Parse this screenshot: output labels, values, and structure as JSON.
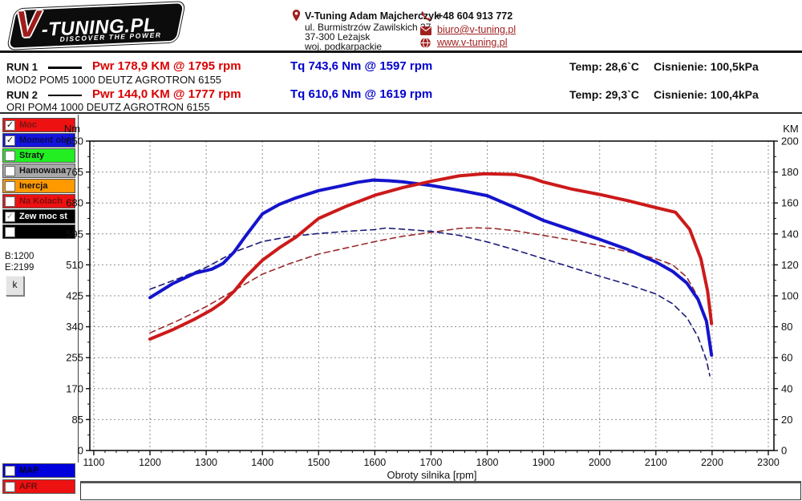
{
  "header": {
    "logo": {
      "brand_v": "V",
      "brand_rest": "-TUNING.PL",
      "tagline": "DISCOVER THE POWER"
    },
    "contact": {
      "name": "V-Tuning Adam Majcherczyk",
      "address_line1": "ul. Burmistrzów Zawilskich 37",
      "address_line2": "37-300 Leżajsk",
      "address_line3": "woj. podkarpackie",
      "phone": "+48 604 913 772",
      "email": "biuro@v-tuning.pl",
      "website": "www.v-tuning.pl",
      "icons": [
        "location-pin-icon",
        "phone-icon",
        "email-icon",
        "globe-icon"
      ],
      "icon_color": "#a02020"
    }
  },
  "runs": [
    {
      "label": "RUN 1",
      "power": "Pwr  178,9 KM @ 1795 rpm",
      "torque": "Tq 743,6 Nm @ 1597 rpm",
      "temp": "Temp: 28,6`C",
      "pressure": "Cisnienie: 100,5kPa",
      "model": "MOD2 POM5 1000 DEUTZ AGROTRON 6155"
    },
    {
      "label": "RUN 2",
      "power": "Pwr  144,0 KM @ 1777 rpm",
      "torque": "Tq 610,6 Nm @ 1619 rpm",
      "temp": "Temp: 29,3`C",
      "pressure": "Cisnienie: 100,4kPa",
      "model": "ORI POM4 1000 DEUTZ AGROTRON 6155"
    }
  ],
  "sidebar": {
    "channels": [
      {
        "label": "Moc",
        "bg": "#ee1111",
        "text_color": "#7a1515",
        "check": "✓",
        "check_color": "#111111"
      },
      {
        "label": "Moment obr",
        "bg": "#1414dd",
        "text_color": "#0a0a50",
        "check": "✓",
        "check_color": "#111111"
      },
      {
        "label": "Straty",
        "bg": "#22ee22",
        "text_color": "#111111",
        "check": "",
        "check_color": "#111111"
      },
      {
        "label": "Hamowana",
        "bg": "#a8a8a8",
        "text_color": "#111111",
        "check": "",
        "check_color": "#111111"
      },
      {
        "label": "Inercja",
        "bg": "#ff9900",
        "text_color": "#111111",
        "check": "",
        "check_color": "#111111"
      },
      {
        "label": "Na Kolach",
        "bg": "#ee1111",
        "text_color": "#7a1010",
        "check": "",
        "check_color": "#111111"
      },
      {
        "label": "Zew moc st",
        "bg": "#000000",
        "text_color": "#ffffff",
        "check": "✓",
        "check_color": "#909090"
      },
      {
        "label": "",
        "bg": "#000000",
        "text_color": "#ffffff",
        "check": "",
        "check_color": "#111111"
      }
    ],
    "range_begin": "B:1200",
    "range_end": "E:2199",
    "button_label": "k"
  },
  "bottom_channels": [
    {
      "label": "MAP",
      "bg": "#0000dd",
      "text_color": "#05052e",
      "check": "",
      "check_color": "#111111"
    },
    {
      "label": "AFR",
      "bg": "#ee1111",
      "text_color": "#6e1010",
      "check": "",
      "check_color": "#111111"
    }
  ],
  "chart_data": {
    "type": "line",
    "x_axis": {
      "label": "Obroty silnika [rpm]",
      "min": 1093,
      "max": 2310,
      "tick_min": 1100,
      "tick_max": 2300,
      "tick_step": 100,
      "minor_step": 20
    },
    "y_left": {
      "label": "Nm",
      "min": 0,
      "max": 850,
      "tick_step": 85
    },
    "y_right": {
      "label": "KM",
      "min": 0,
      "max": 200,
      "tick_step": 20
    },
    "grid": true,
    "grid_color": "#8f8f8f",
    "series": [
      {
        "name": "RUN 2 power (KM)",
        "axis": "right",
        "color": "#9a2a2a",
        "width": 1.6,
        "dash": "7 5",
        "points": [
          [
            1200,
            76
          ],
          [
            1250,
            84
          ],
          [
            1300,
            93
          ],
          [
            1350,
            103.5
          ],
          [
            1400,
            114
          ],
          [
            1450,
            121
          ],
          [
            1500,
            127
          ],
          [
            1550,
            131
          ],
          [
            1600,
            135
          ],
          [
            1650,
            138.5
          ],
          [
            1700,
            141
          ],
          [
            1750,
            143.5
          ],
          [
            1777,
            144
          ],
          [
            1810,
            143.6
          ],
          [
            1850,
            142
          ],
          [
            1900,
            139
          ],
          [
            1950,
            136
          ],
          [
            2000,
            132.5
          ],
          [
            2050,
            128.5
          ],
          [
            2100,
            124
          ],
          [
            2130,
            120
          ],
          [
            2155,
            112
          ],
          [
            2175,
            99
          ],
          [
            2190,
            81
          ],
          [
            2199,
            62
          ]
        ]
      },
      {
        "name": "RUN 2 torque (Nm)",
        "axis": "left",
        "color": "#1a1a78",
        "width": 1.6,
        "dash": "7 5",
        "points": [
          [
            1200,
            443
          ],
          [
            1250,
            472
          ],
          [
            1300,
            503
          ],
          [
            1350,
            545
          ],
          [
            1400,
            574
          ],
          [
            1450,
            588
          ],
          [
            1500,
            596
          ],
          [
            1550,
            602
          ],
          [
            1600,
            607
          ],
          [
            1619,
            611
          ],
          [
            1650,
            608
          ],
          [
            1700,
            602
          ],
          [
            1750,
            591
          ],
          [
            1800,
            573
          ],
          [
            1850,
            551
          ],
          [
            1900,
            527
          ],
          [
            1950,
            503
          ],
          [
            2000,
            479
          ],
          [
            2050,
            456
          ],
          [
            2100,
            430
          ],
          [
            2130,
            403
          ],
          [
            2155,
            365
          ],
          [
            2175,
            312
          ],
          [
            2190,
            248
          ],
          [
            2196,
            205
          ]
        ]
      },
      {
        "name": "RUN 1 torque (Nm)",
        "axis": "left",
        "color": "#1414cc",
        "width": 4,
        "dash": null,
        "points": [
          [
            1200,
            420
          ],
          [
            1240,
            458
          ],
          [
            1280,
            487
          ],
          [
            1310,
            498
          ],
          [
            1330,
            514
          ],
          [
            1350,
            546
          ],
          [
            1370,
            589
          ],
          [
            1400,
            650
          ],
          [
            1430,
            676
          ],
          [
            1460,
            694
          ],
          [
            1500,
            714
          ],
          [
            1540,
            727
          ],
          [
            1570,
            737
          ],
          [
            1597,
            743
          ],
          [
            1625,
            741
          ],
          [
            1650,
            738
          ],
          [
            1700,
            728
          ],
          [
            1750,
            715
          ],
          [
            1800,
            700
          ],
          [
            1850,
            667
          ],
          [
            1900,
            632
          ],
          [
            1950,
            606
          ],
          [
            2000,
            580
          ],
          [
            2050,
            552
          ],
          [
            2100,
            518
          ],
          [
            2130,
            492
          ],
          [
            2155,
            460
          ],
          [
            2175,
            415
          ],
          [
            2190,
            355
          ],
          [
            2199,
            262
          ]
        ]
      },
      {
        "name": "RUN 1 power (KM)",
        "axis": "right",
        "color": "#cc1a1a",
        "width": 4,
        "dash": null,
        "points": [
          [
            1200,
            72
          ],
          [
            1240,
            78
          ],
          [
            1280,
            85
          ],
          [
            1310,
            91
          ],
          [
            1330,
            96
          ],
          [
            1350,
            103
          ],
          [
            1370,
            112
          ],
          [
            1400,
            123
          ],
          [
            1430,
            131
          ],
          [
            1460,
            138
          ],
          [
            1500,
            150
          ],
          [
            1550,
            158
          ],
          [
            1600,
            165
          ],
          [
            1650,
            170
          ],
          [
            1700,
            174
          ],
          [
            1750,
            177.5
          ],
          [
            1795,
            178.9
          ],
          [
            1850,
            178.4
          ],
          [
            1880,
            176
          ],
          [
            1900,
            173.5
          ],
          [
            1950,
            169
          ],
          [
            2000,
            165.5
          ],
          [
            2050,
            161.5
          ],
          [
            2100,
            157
          ],
          [
            2135,
            154
          ],
          [
            2160,
            143
          ],
          [
            2180,
            124
          ],
          [
            2192,
            103
          ],
          [
            2199,
            82
          ]
        ]
      }
    ]
  }
}
